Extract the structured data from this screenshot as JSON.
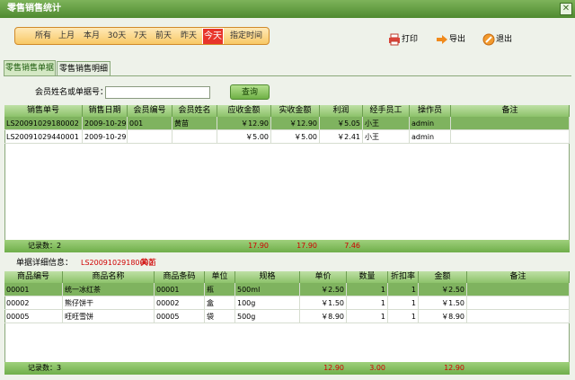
{
  "window": {
    "title": "零售销售统计"
  },
  "toolbar": {
    "ranges": [
      "所有",
      "上月",
      "本月",
      "30天",
      "7天",
      "前天",
      "昨天",
      "今天",
      "指定时间"
    ],
    "actions": [
      "打印",
      "导出",
      "退出"
    ]
  },
  "tabs": [
    "零售销售单据",
    "零售销售明细"
  ],
  "search": {
    "label": "会员姓名或单据号：",
    "button": "查询"
  },
  "orders": {
    "columns": [
      "销售单号",
      "销售日期",
      "会员编号",
      "会员姓名",
      "应收金额",
      "实收金额",
      "利润",
      "经手员工",
      "操作员",
      "备注"
    ],
    "rows": [
      {
        "no": "LS20091029180002",
        "date": "2009-10-29",
        "member_id": "001",
        "member_name": "黄苗",
        "receivable": "￥12.90",
        "received": "￥12.90",
        "profit": "￥5.05",
        "staff": "小王",
        "operator": "admin"
      },
      {
        "no": "LS20091029440001",
        "date": "2009-10-29",
        "receivable": "￥5.00",
        "received": "￥5.00",
        "profit": "￥2.41",
        "staff": "小王",
        "operator": "admin"
      }
    ],
    "footer": {
      "count": "记录数：2",
      "receivable": "17.90",
      "received": "17.90",
      "profit": "7.46"
    }
  },
  "detail": {
    "label": "单据详细信息：",
    "order_no": "LS20091029180002",
    "member": "黄苗"
  },
  "items": {
    "columns": [
      "商品编号",
      "商品名称",
      "商品条码",
      "单位",
      "规格",
      "单价",
      "数量",
      "折扣率",
      "金额",
      "备注"
    ],
    "rows": [
      {
        "code": "00001",
        "name": "统一冰红茶",
        "barcode": "00001",
        "unit": "瓶",
        "spec": "500ml",
        "price": "￥2.50",
        "qty": 1,
        "discount": 1,
        "amount": "￥2.50"
      },
      {
        "code": "00002",
        "name": "熊仔饼干",
        "barcode": "00002",
        "unit": "盒",
        "spec": "100g",
        "price": "￥1.50",
        "qty": 1,
        "discount": 1,
        "amount": "￥1.50"
      },
      {
        "code": "00005",
        "name": "旺旺雪饼",
        "barcode": "00005",
        "unit": "袋",
        "spec": "500g",
        "price": "￥8.90",
        "qty": 1,
        "discount": 1,
        "amount": "￥8.90"
      }
    ],
    "footer": {
      "count": "记录数：3",
      "price": "12.90",
      "qty": "3.00",
      "amount": "12.90"
    }
  }
}
